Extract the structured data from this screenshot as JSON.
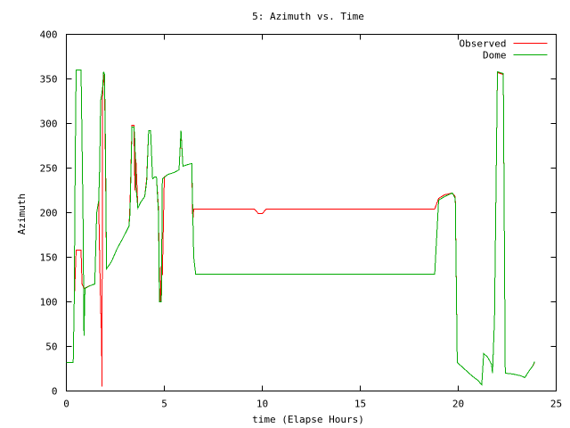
{
  "chart_data": {
    "type": "line",
    "title": "5: Azimuth vs. Time",
    "xlabel": "time (Elapse Hours)",
    "ylabel": "Azimuth",
    "xlim": [
      0,
      25
    ],
    "ylim": [
      0,
      400
    ],
    "xticks": [
      0,
      5,
      10,
      15,
      20,
      25
    ],
    "yticks": [
      0,
      50,
      100,
      150,
      200,
      250,
      300,
      350,
      400
    ],
    "grid": false,
    "legend_position": "top-right",
    "series": [
      {
        "name": "Observed",
        "color": "#ff0000",
        "points": [
          [
            0.0,
            32
          ],
          [
            0.35,
            32
          ],
          [
            0.4,
            100
          ],
          [
            0.5,
            158
          ],
          [
            0.75,
            158
          ],
          [
            0.8,
            120
          ],
          [
            0.9,
            115
          ],
          [
            1.2,
            118
          ],
          [
            1.45,
            120
          ],
          [
            1.55,
            200
          ],
          [
            1.65,
            213
          ],
          [
            1.7,
            150
          ],
          [
            1.75,
            95
          ],
          [
            1.8,
            60
          ],
          [
            1.82,
            5
          ],
          [
            1.85,
            330
          ],
          [
            1.9,
            355
          ],
          [
            1.95,
            345
          ],
          [
            2.0,
            250
          ],
          [
            2.05,
            137
          ],
          [
            2.3,
            145
          ],
          [
            2.6,
            160
          ],
          [
            2.9,
            172
          ],
          [
            3.2,
            185
          ],
          [
            3.25,
            210
          ],
          [
            3.35,
            298
          ],
          [
            3.45,
            298
          ],
          [
            3.5,
            225
          ],
          [
            3.55,
            260
          ],
          [
            3.65,
            205
          ],
          [
            3.8,
            212
          ],
          [
            4.0,
            218
          ],
          [
            4.1,
            238
          ],
          [
            4.2,
            292
          ],
          [
            4.3,
            292
          ],
          [
            4.4,
            238
          ],
          [
            4.5,
            240
          ],
          [
            4.6,
            240
          ],
          [
            4.7,
            205
          ],
          [
            4.75,
            120
          ],
          [
            4.8,
            100
          ],
          [
            4.85,
            140
          ],
          [
            4.9,
            130
          ],
          [
            5.0,
            240
          ],
          [
            5.2,
            243
          ],
          [
            5.5,
            245
          ],
          [
            5.75,
            248
          ],
          [
            5.85,
            290
          ],
          [
            5.95,
            252
          ],
          [
            6.2,
            254
          ],
          [
            6.4,
            255
          ],
          [
            6.45,
            190
          ],
          [
            6.5,
            204
          ],
          [
            9.6,
            204
          ],
          [
            9.8,
            199
          ],
          [
            10.0,
            199
          ],
          [
            10.2,
            204
          ],
          [
            18.8,
            204
          ],
          [
            19.0,
            216
          ],
          [
            19.3,
            220
          ],
          [
            19.7,
            222
          ],
          [
            19.85,
            218
          ],
          [
            19.95,
            32
          ],
          [
            20.3,
            25
          ],
          [
            20.7,
            17
          ],
          [
            21.0,
            12
          ],
          [
            21.2,
            7
          ],
          [
            21.3,
            42
          ],
          [
            21.5,
            38
          ],
          [
            21.7,
            30
          ],
          [
            21.75,
            20
          ],
          [
            21.85,
            80
          ],
          [
            22.0,
            357
          ],
          [
            22.3,
            355
          ],
          [
            22.4,
            20
          ],
          [
            22.8,
            19
          ],
          [
            23.2,
            17
          ],
          [
            23.4,
            15
          ],
          [
            23.6,
            22
          ],
          [
            23.8,
            28
          ],
          [
            23.9,
            32
          ]
        ]
      },
      {
        "name": "Dome",
        "color": "#00aa00",
        "points": [
          [
            0.0,
            32
          ],
          [
            0.35,
            32
          ],
          [
            0.4,
            100
          ],
          [
            0.45,
            250
          ],
          [
            0.5,
            360
          ],
          [
            0.75,
            360
          ],
          [
            0.8,
            280
          ],
          [
            0.85,
            200
          ],
          [
            0.9,
            62
          ],
          [
            0.95,
            115
          ],
          [
            1.2,
            118
          ],
          [
            1.45,
            120
          ],
          [
            1.55,
            200
          ],
          [
            1.65,
            213
          ],
          [
            1.7,
            250
          ],
          [
            1.75,
            325
          ],
          [
            1.85,
            340
          ],
          [
            1.9,
            358
          ],
          [
            1.95,
            355
          ],
          [
            2.0,
            270
          ],
          [
            2.05,
            137
          ],
          [
            2.3,
            145
          ],
          [
            2.6,
            160
          ],
          [
            2.9,
            172
          ],
          [
            3.2,
            185
          ],
          [
            3.25,
            200
          ],
          [
            3.35,
            296
          ],
          [
            3.45,
            296
          ],
          [
            3.5,
            280
          ],
          [
            3.55,
            230
          ],
          [
            3.65,
            205
          ],
          [
            3.8,
            212
          ],
          [
            4.0,
            218
          ],
          [
            4.1,
            235
          ],
          [
            4.2,
            292
          ],
          [
            4.3,
            292
          ],
          [
            4.4,
            238
          ],
          [
            4.5,
            240
          ],
          [
            4.6,
            240
          ],
          [
            4.7,
            200
          ],
          [
            4.75,
            100
          ],
          [
            4.85,
            100
          ],
          [
            4.9,
            238
          ],
          [
            5.2,
            243
          ],
          [
            5.5,
            245
          ],
          [
            5.75,
            248
          ],
          [
            5.85,
            292
          ],
          [
            5.95,
            252
          ],
          [
            6.2,
            254
          ],
          [
            6.4,
            255
          ],
          [
            6.5,
            150
          ],
          [
            6.6,
            131
          ],
          [
            18.8,
            131
          ],
          [
            19.0,
            214
          ],
          [
            19.3,
            218
          ],
          [
            19.7,
            222
          ],
          [
            19.85,
            216
          ],
          [
            19.95,
            32
          ],
          [
            20.3,
            25
          ],
          [
            20.7,
            17
          ],
          [
            21.0,
            12
          ],
          [
            21.2,
            7
          ],
          [
            21.3,
            42
          ],
          [
            21.5,
            38
          ],
          [
            21.7,
            30
          ],
          [
            21.75,
            20
          ],
          [
            21.85,
            80
          ],
          [
            22.0,
            358
          ],
          [
            22.3,
            356
          ],
          [
            22.4,
            20
          ],
          [
            22.8,
            19
          ],
          [
            23.2,
            17
          ],
          [
            23.4,
            15
          ],
          [
            23.6,
            22
          ],
          [
            23.8,
            28
          ],
          [
            23.9,
            33
          ]
        ]
      }
    ]
  }
}
